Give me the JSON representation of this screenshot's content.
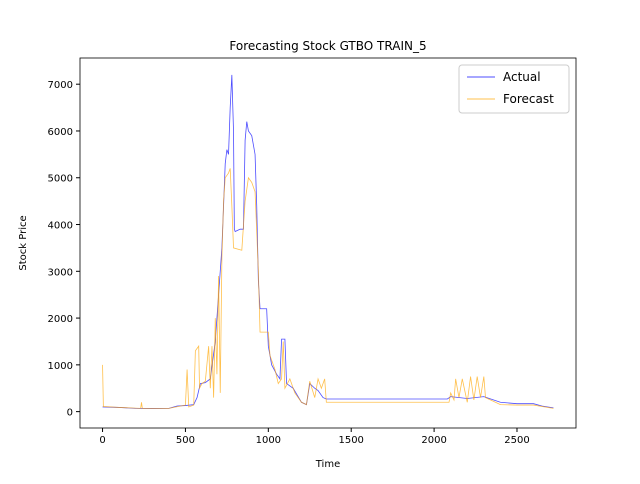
{
  "chart_data": {
    "type": "line",
    "title": "Forecasting Stock GTBO TRAIN_5",
    "xlabel": "Time",
    "ylabel": "Stock Price",
    "xlim": [
      -136,
      2856
    ],
    "ylim": [
      -350,
      7560
    ],
    "xticks": [
      0,
      500,
      1000,
      1500,
      2000,
      2500
    ],
    "yticks": [
      0,
      1000,
      2000,
      3000,
      4000,
      5000,
      6000,
      7000
    ],
    "legend": "upper right",
    "series": [
      {
        "name": "Actual",
        "color": "#0000ff",
        "x": [
          0,
          100,
          200,
          300,
          400,
          450,
          500,
          550,
          570,
          590,
          620,
          650,
          680,
          700,
          720,
          740,
          750,
          760,
          770,
          780,
          790,
          795,
          800,
          830,
          850,
          860,
          870,
          880,
          900,
          920,
          930,
          940,
          950,
          990,
          1000,
          1020,
          1050,
          1070,
          1080,
          1100,
          1110,
          1150,
          1200,
          1230,
          1250,
          1280,
          1300,
          1330,
          1350,
          2050,
          2080,
          2100,
          2200,
          2300,
          2400,
          2500,
          2600,
          2650,
          2720
        ],
        "values": [
          100,
          90,
          70,
          65,
          70,
          120,
          130,
          150,
          300,
          600,
          620,
          700,
          1500,
          2500,
          3500,
          5300,
          5600,
          5500,
          6500,
          7200,
          6000,
          3900,
          3850,
          3900,
          3900,
          5800,
          6200,
          6000,
          5900,
          5500,
          4400,
          2800,
          2200,
          2200,
          1400,
          1000,
          800,
          700,
          1550,
          1550,
          600,
          500,
          200,
          150,
          600,
          500,
          450,
          300,
          270,
          270,
          270,
          320,
          280,
          320,
          200,
          170,
          170,
          120,
          80
        ]
      },
      {
        "name": "Forecast",
        "color": "#ffa500",
        "x": [
          0,
          5,
          100,
          230,
          235,
          240,
          400,
          500,
          510,
          520,
          550,
          560,
          580,
          585,
          600,
          620,
          640,
          650,
          660,
          670,
          680,
          690,
          700,
          710,
          720,
          730,
          740,
          760,
          770,
          780,
          790,
          840,
          860,
          880,
          900,
          920,
          940,
          950,
          1000,
          1010,
          1040,
          1060,
          1080,
          1090,
          1100,
          1130,
          1160,
          1200,
          1230,
          1250,
          1280,
          1300,
          1320,
          1340,
          1350,
          2050,
          2090,
          2100,
          2120,
          2130,
          2150,
          2170,
          2200,
          2220,
          2240,
          2260,
          2280,
          2300,
          2310,
          2400,
          2500,
          2600,
          2720
        ],
        "values": [
          1000,
          110,
          90,
          70,
          200,
          70,
          70,
          140,
          900,
          100,
          140,
          1300,
          1400,
          500,
          600,
          650,
          1400,
          500,
          1400,
          300,
          2000,
          800,
          2900,
          400,
          3300,
          4500,
          5000,
          5100,
          5200,
          4400,
          3500,
          3450,
          4500,
          5000,
          4900,
          4700,
          3000,
          1700,
          1700,
          1200,
          900,
          600,
          700,
          1500,
          500,
          700,
          400,
          200,
          150,
          650,
          300,
          700,
          500,
          700,
          200,
          200,
          200,
          400,
          250,
          700,
          300,
          700,
          200,
          750,
          250,
          750,
          300,
          750,
          300,
          150,
          140,
          140,
          70
        ]
      }
    ]
  }
}
